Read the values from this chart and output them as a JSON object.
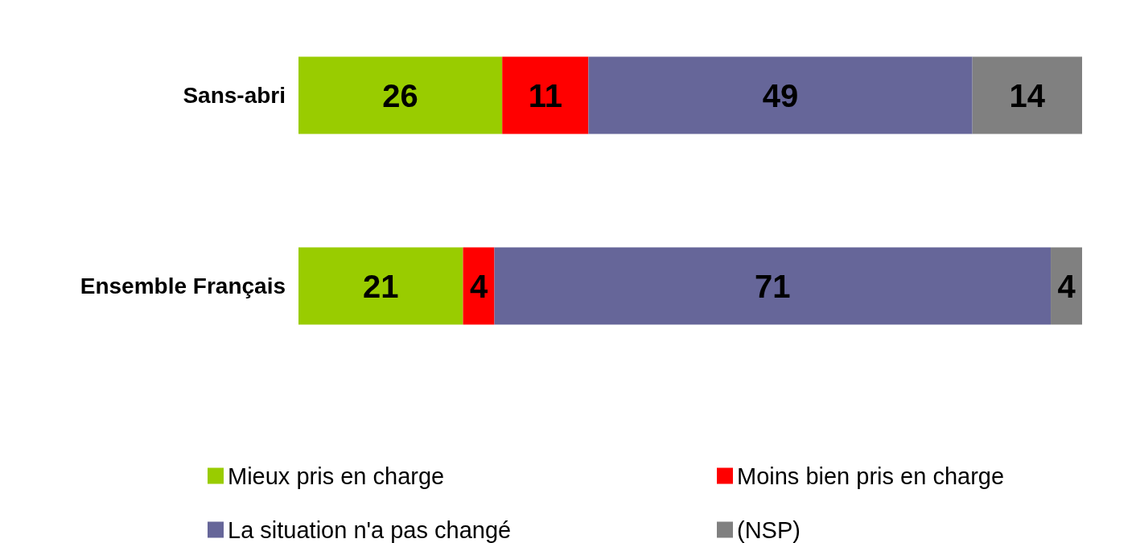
{
  "chart_data": {
    "type": "bar",
    "orientation": "horizontal",
    "stacked": true,
    "categories": [
      "Sans-abri",
      "Ensemble Français"
    ],
    "series": [
      {
        "name": "Mieux pris en charge",
        "color": "#99cc00",
        "values": [
          26,
          21
        ]
      },
      {
        "name": "Moins bien pris en charge",
        "color": "#ff0000",
        "values": [
          11,
          4
        ]
      },
      {
        "name": "La situation n'a pas changé",
        "color": "#666699",
        "values": [
          49,
          71
        ]
      },
      {
        "name": "(NSP)",
        "color": "#808080",
        "values": [
          14,
          4
        ]
      }
    ],
    "xlim": [
      0,
      100
    ],
    "tick_labels": "y",
    "data_labels": true,
    "legend": "bottom"
  }
}
